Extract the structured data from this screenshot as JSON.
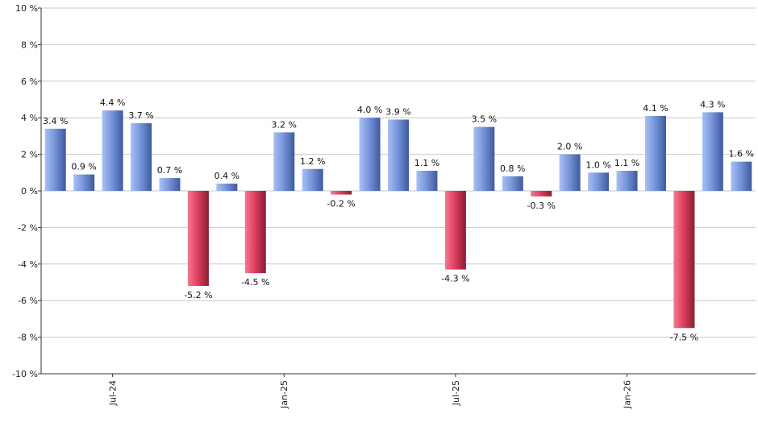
{
  "chart_data": {
    "type": "bar",
    "title": "",
    "xlabel": "",
    "ylabel": "",
    "ylim": [
      -10,
      10
    ],
    "yticks": [
      10,
      8,
      6,
      4,
      2,
      0,
      -2,
      -4,
      -6,
      -8,
      -10
    ],
    "ytick_labels": [
      "10 %",
      "8 %",
      "6 %",
      "4 %",
      "2 %",
      "0 %",
      "-2 %",
      "-4 %",
      "-6 %",
      "-8 %",
      "-10 %"
    ],
    "x_axis_labels": [
      {
        "label": "Jul-24",
        "index": 2
      },
      {
        "label": "Jan-25",
        "index": 8
      },
      {
        "label": "Jul-25",
        "index": 14
      },
      {
        "label": "Jan-26",
        "index": 20
      }
    ],
    "values": [
      3.4,
      0.9,
      4.4,
      3.7,
      0.7,
      -5.2,
      0.4,
      -4.5,
      3.2,
      1.2,
      -0.2,
      4.0,
      3.9,
      1.1,
      -4.3,
      3.5,
      0.8,
      -0.3,
      2.0,
      1.0,
      1.1,
      4.1,
      -7.5,
      4.3,
      1.6
    ],
    "data_labels": [
      "3.4 %",
      "0.9 %",
      "4.4 %",
      "3.7 %",
      "0.7 %",
      "-5.2 %",
      "0.4 %",
      "-4.5 %",
      "3.2 %",
      "1.2 %",
      "-0.2 %",
      "4.0 %",
      "3.9 %",
      "1.1 %",
      "-4.3 %",
      "3.5 %",
      "0.8 %",
      "-0.3 %",
      "2.0 %",
      "1.0 %",
      "1.1 %",
      "4.1 %",
      "-7.5 %",
      "4.3 %",
      "1.6 %"
    ],
    "grid": true,
    "legend": "none",
    "colors": {
      "positive": "#7896dc",
      "positive_dark": "#3e5a9c",
      "negative": "#e04060",
      "negative_dark": "#8a1e34",
      "grid": "#c8c8c8",
      "axis": "#333333"
    }
  }
}
